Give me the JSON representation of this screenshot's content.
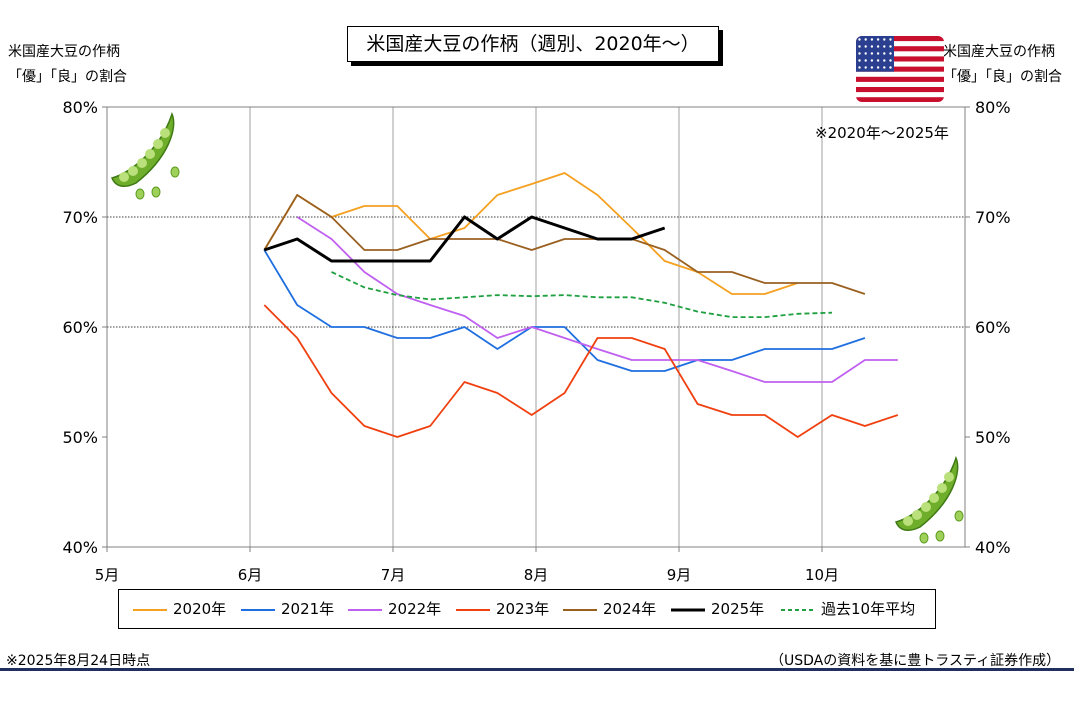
{
  "title": "米国産大豆の作柄（週別、2020年～）",
  "left_axis_label": [
    "米国産大豆の作柄",
    "「優」「良」の割合"
  ],
  "right_axis_label": [
    "米国産大豆の作柄",
    "「優」「良」の割合"
  ],
  "range_note": "※2020年～2025年",
  "footnote_left": "※2025年8月24日時点",
  "footnote_right": "（USDAの資料を基に豊トラスティ証券作成）",
  "colors": {
    "2020年": "#f5a020",
    "2021年": "#1f6fe0",
    "2022年": "#c060f0",
    "2023年": "#f04010",
    "2024年": "#9a6020",
    "2025年": "#000000",
    "過去10年平均": "#20a040"
  },
  "chart_data": {
    "type": "line",
    "x_ticks": [
      "5月",
      "6月",
      "7月",
      "8月",
      "9月",
      "10月"
    ],
    "y_ticks": [
      "40%",
      "50%",
      "60%",
      "70%",
      "80%"
    ],
    "ylim": [
      40,
      80
    ],
    "x_unit": "month (5 = 5月, fractional = within month)",
    "grid": "horizontal gridlines at 60% and 70%, vertical gridlines at month starts",
    "legend_position": "bottom",
    "series": [
      {
        "name": "2020年",
        "style": "solid",
        "x": [
          6.1,
          6.33,
          6.57,
          6.8,
          7.03,
          7.26,
          7.5,
          7.73,
          7.97,
          8.2,
          8.43,
          8.67,
          8.9,
          9.13,
          9.37,
          9.6,
          9.83
        ],
        "y": [
          67,
          72,
          70,
          71,
          71,
          68,
          69,
          72,
          73,
          74,
          72,
          69,
          66,
          65,
          63,
          63,
          64
        ]
      },
      {
        "name": "2021年",
        "style": "solid",
        "x": [
          6.1,
          6.33,
          6.57,
          6.8,
          7.03,
          7.26,
          7.5,
          7.73,
          7.97,
          8.2,
          8.43,
          8.67,
          8.9,
          9.13,
          9.37,
          9.6,
          9.83,
          10.07,
          10.3
        ],
        "y": [
          67,
          62,
          60,
          60,
          59,
          59,
          60,
          58,
          60,
          60,
          57,
          56,
          56,
          57,
          57,
          58,
          58,
          58,
          59
        ]
      },
      {
        "name": "2022年",
        "style": "solid",
        "x": [
          6.33,
          6.57,
          6.8,
          7.03,
          7.26,
          7.5,
          7.73,
          7.97,
          8.2,
          8.43,
          8.67,
          8.9,
          9.13,
          9.37,
          9.6,
          9.83,
          10.07,
          10.3,
          10.53
        ],
        "y": [
          70,
          68,
          65,
          63,
          62,
          61,
          59,
          60,
          59,
          58,
          57,
          57,
          57,
          56,
          55,
          55,
          55,
          57,
          57
        ]
      },
      {
        "name": "2023年",
        "style": "solid",
        "x": [
          6.1,
          6.33,
          6.57,
          6.8,
          7.03,
          7.26,
          7.5,
          7.73,
          7.97,
          8.2,
          8.43,
          8.67,
          8.9,
          9.13,
          9.37,
          9.6,
          9.83,
          10.07,
          10.3,
          10.53
        ],
        "y": [
          62,
          59,
          54,
          51,
          50,
          51,
          55,
          54,
          52,
          54,
          59,
          59,
          58,
          53,
          52,
          52,
          50,
          52,
          51,
          52
        ]
      },
      {
        "name": "2024年",
        "style": "solid",
        "x": [
          6.1,
          6.33,
          6.57,
          6.8,
          7.03,
          7.26,
          7.5,
          7.73,
          7.97,
          8.2,
          8.43,
          8.67,
          8.9,
          9.13,
          9.37,
          9.6,
          9.83,
          10.07,
          10.3
        ],
        "y": [
          67,
          72,
          70,
          67,
          67,
          68,
          68,
          68,
          67,
          68,
          68,
          68,
          67,
          65,
          65,
          64,
          64,
          64,
          63
        ]
      },
      {
        "name": "2025年",
        "style": "solid-bold",
        "x": [
          6.1,
          6.33,
          6.57,
          6.8,
          7.03,
          7.26,
          7.5,
          7.73,
          7.97,
          8.2,
          8.43,
          8.67,
          8.9
        ],
        "y": [
          67,
          68,
          66,
          66,
          66,
          66,
          70,
          68,
          70,
          69,
          68,
          68,
          69
        ]
      },
      {
        "name": "過去10年平均",
        "style": "dashed",
        "x": [
          6.57,
          6.8,
          7.03,
          7.26,
          7.5,
          7.73,
          7.97,
          8.2,
          8.43,
          8.67,
          8.9,
          9.13,
          9.37,
          9.6,
          9.83,
          10.07
        ],
        "y": [
          65,
          63.6,
          62.9,
          62.5,
          62.7,
          62.9,
          62.8,
          62.9,
          62.7,
          62.7,
          62.2,
          61.4,
          60.9,
          60.9,
          61.2,
          61.3
        ]
      }
    ]
  }
}
